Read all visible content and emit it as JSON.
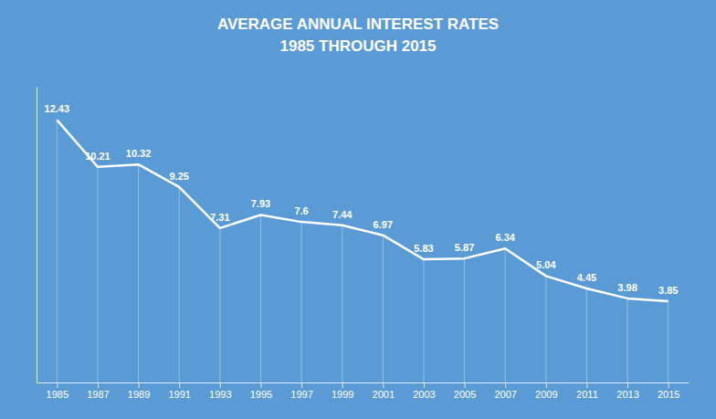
{
  "chart_data": {
    "type": "line",
    "title": "AVERAGE ANNUAL INTEREST RATES",
    "subtitle": "1985 THROUGH 2015",
    "x": [
      1985,
      1987,
      1989,
      1991,
      1993,
      1995,
      1997,
      1999,
      2001,
      2003,
      2005,
      2007,
      2009,
      2011,
      2013,
      2015
    ],
    "values": [
      12.43,
      10.21,
      10.32,
      9.25,
      7.31,
      7.93,
      7.6,
      7.44,
      6.97,
      5.83,
      5.87,
      6.34,
      5.04,
      4.45,
      3.98,
      3.85
    ],
    "color": "#ffffff",
    "xlim": [
      1984,
      2016
    ],
    "xticks": [
      1985,
      1987,
      1989,
      1991,
      1993,
      1995,
      1997,
      1999,
      2001,
      2003,
      2005,
      2007,
      2009,
      2011,
      2013,
      2015
    ],
    "ylim": [
      0,
      14
    ],
    "data_labels": true,
    "tick_labels": "x",
    "grid": false
  }
}
